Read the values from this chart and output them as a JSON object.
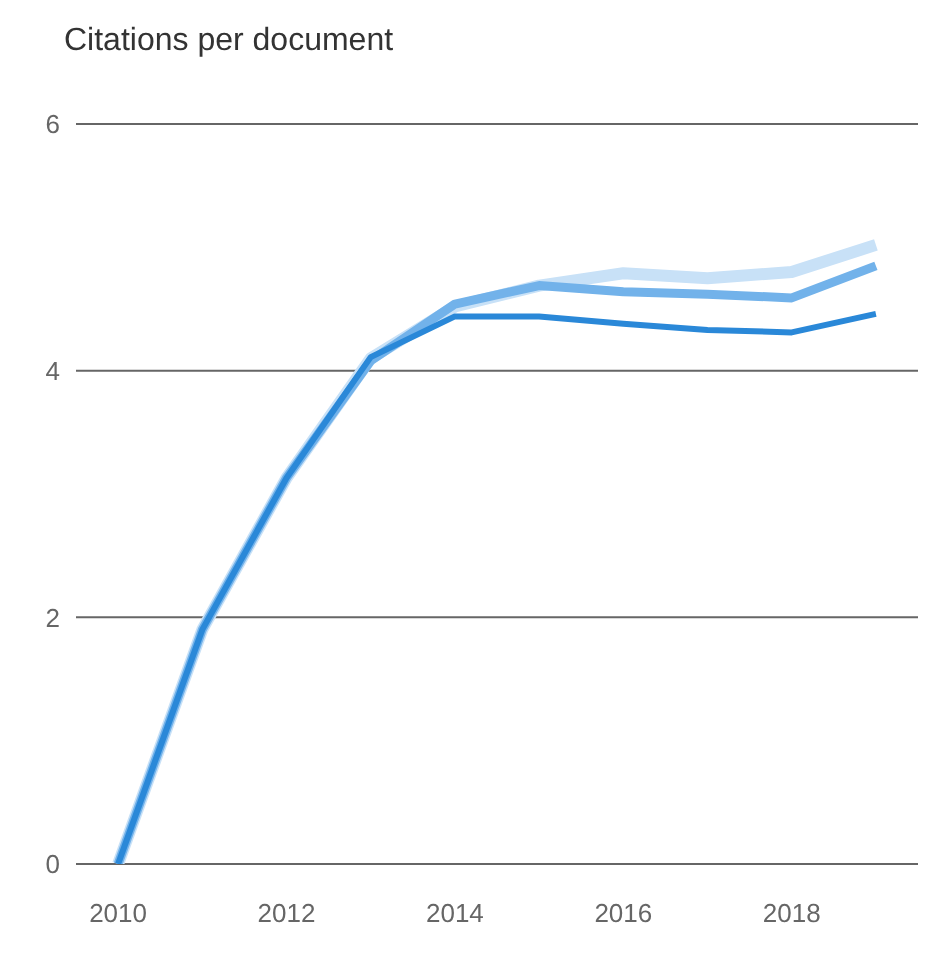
{
  "chart_data": {
    "type": "line",
    "title": "Citations per document",
    "x": [
      2010,
      2011,
      2012,
      2013,
      2014,
      2015,
      2016,
      2017,
      2018,
      2019
    ],
    "series": [
      {
        "color": "#c8e1f7",
        "values": [
          0,
          1.9,
          3.13,
          4.1,
          4.52,
          4.69,
          4.79,
          4.75,
          4.8,
          5.02
        ]
      },
      {
        "color": "#72b2ea",
        "values": [
          0,
          1.9,
          3.13,
          4.08,
          4.54,
          4.69,
          4.64,
          4.62,
          4.59,
          4.85
        ]
      },
      {
        "color": "#2a88d8",
        "values": [
          0,
          1.9,
          3.13,
          4.11,
          4.44,
          4.44,
          4.38,
          4.33,
          4.31,
          4.46
        ]
      }
    ],
    "xlim": [
      2009.5,
      2019.5
    ],
    "xticks": [
      2010,
      2012,
      2014,
      2016,
      2018
    ],
    "ylim": [
      0,
      6
    ],
    "yticks": [
      0,
      2,
      4,
      6
    ],
    "grid": "y",
    "marker": "none",
    "line_style": "solid"
  }
}
